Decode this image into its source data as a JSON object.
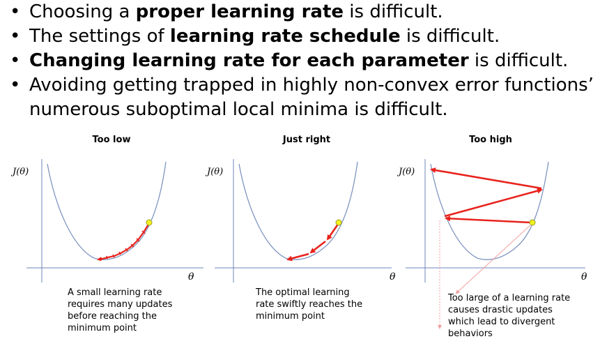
{
  "bullets": [
    {
      "pre": "Choosing a ",
      "bold": "proper learning rate",
      "post": " is difficult."
    },
    {
      "pre": "The settings of ",
      "bold": "learning rate schedule",
      "post": " is difficult."
    },
    {
      "pre": "",
      "bold": "Changing learning rate for each parameter",
      "post": " is difficult."
    },
    {
      "pre": "Avoiding getting trapped in highly non-convex error functions’ numerous suboptimal local minima is difficult.",
      "bold": "",
      "post": ""
    }
  ],
  "bullet_symbol": "•",
  "panels": [
    {
      "title": "Too low",
      "y_label": "J(θ)",
      "x_label": "θ",
      "caption": [
        "A small learning rate",
        "requires many updates",
        "before reaching the",
        "minimum point"
      ]
    },
    {
      "title": "Just right",
      "y_label": "J(θ)",
      "x_label": "θ",
      "caption": [
        "The optimal learning",
        "rate swiftly reaches the",
        "minimum point"
      ]
    },
    {
      "title": "Too high",
      "y_label": "J(θ)",
      "x_label": "θ",
      "caption": [
        "Too large of a learning rate",
        "causes drastic updates",
        "which lead to divergent",
        "behaviors"
      ]
    }
  ],
  "colors": {
    "curve": "#7f96c0",
    "axis": "#6d84b8",
    "arrow": "#e8231c",
    "point": "#f2f21c",
    "pointer": "#f0a0a0"
  }
}
